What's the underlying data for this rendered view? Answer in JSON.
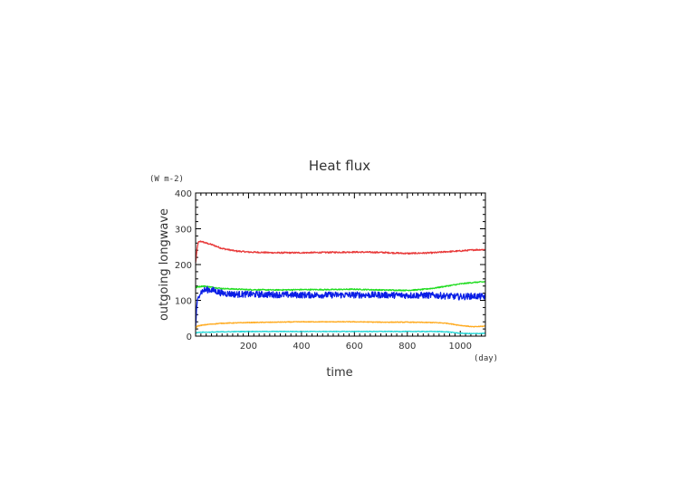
{
  "chart_data": {
    "type": "line",
    "title": "Heat flux",
    "xlabel": "time",
    "ylabel": "outgoing longwave",
    "x_unit": "(day)",
    "y_unit": "(W m-2)",
    "xlim": [
      0,
      1095
    ],
    "ylim": [
      0,
      400
    ],
    "xticks": [
      200,
      400,
      600,
      800,
      1000
    ],
    "yticks": [
      0,
      100,
      200,
      300,
      400
    ],
    "grid": false,
    "series": [
      {
        "color": "#e83a3a",
        "x": [
          0,
          5,
          10,
          20,
          40,
          60,
          100,
          150,
          200,
          300,
          400,
          500,
          600,
          700,
          800,
          900,
          950,
          1000,
          1050,
          1095
        ],
        "y": [
          205,
          240,
          262,
          265,
          260,
          256,
          245,
          238,
          235,
          233,
          233,
          234,
          235,
          234,
          231,
          233,
          236,
          238,
          241,
          242
        ],
        "noise": 2
      },
      {
        "color": "#1fdc1f",
        "x": [
          0,
          10,
          30,
          60,
          100,
          200,
          300,
          400,
          500,
          600,
          700,
          800,
          850,
          900,
          950,
          1000,
          1050,
          1095
        ],
        "y": [
          135,
          138,
          140,
          137,
          133,
          130,
          129,
          130,
          130,
          131,
          129,
          128,
          130,
          134,
          140,
          146,
          150,
          152
        ],
        "noise": 1.5
      },
      {
        "color": "#0a1ee6",
        "x": [
          0,
          5,
          15,
          30,
          50,
          70,
          100,
          150,
          200,
          300,
          400,
          500,
          600,
          700,
          800,
          900,
          950,
          1000,
          1050,
          1095
        ],
        "y": [
          30,
          90,
          120,
          128,
          130,
          127,
          120,
          117,
          117,
          116,
          115,
          115,
          115,
          115,
          114,
          114,
          112,
          110,
          112,
          110
        ],
        "noise": 9
      },
      {
        "color": "#ffaa1e",
        "x": [
          0,
          5,
          20,
          50,
          100,
          200,
          300,
          400,
          500,
          600,
          700,
          800,
          900,
          950,
          1000,
          1050,
          1095
        ],
        "y": [
          20,
          28,
          30,
          33,
          36,
          38,
          39,
          40,
          40,
          40,
          39,
          39,
          38,
          36,
          30,
          26,
          28
        ],
        "noise": 1
      },
      {
        "color": "#22d6d6",
        "x": [
          0,
          5,
          20,
          50,
          100,
          200,
          400,
          600,
          800,
          900,
          950,
          1000,
          1050,
          1095
        ],
        "y": [
          8,
          10,
          11,
          11,
          12,
          13,
          13,
          13,
          13,
          13,
          12,
          8,
          7,
          8
        ],
        "noise": 1
      }
    ]
  }
}
